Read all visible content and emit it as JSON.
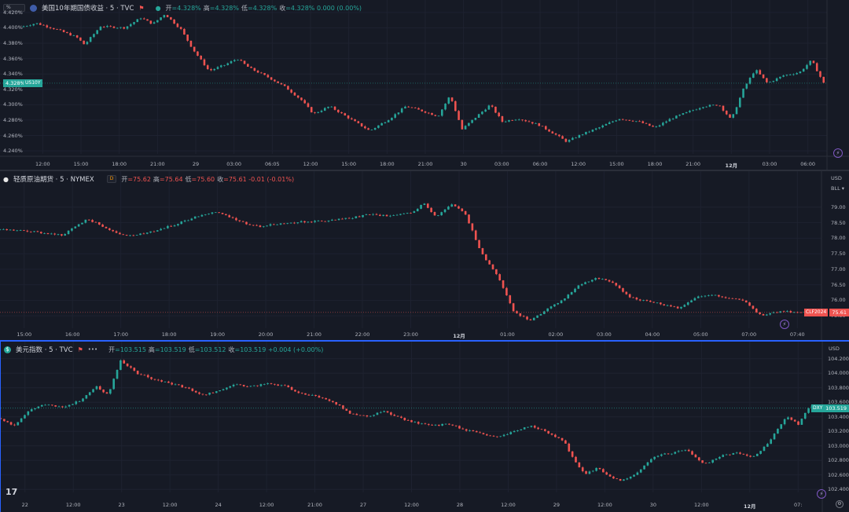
{
  "panes": [
    {
      "id": "us10y",
      "symbol_label": "美国10年期国债收益 · 5 · TVC",
      "flag_color": "#3f5ca8",
      "scale_icon": "%",
      "ohlc": [
        {
          "k": "开",
          "v": "=4.328%"
        },
        {
          "k": "高",
          "v": "=4.328%"
        },
        {
          "k": "低",
          "v": "=4.328%"
        },
        {
          "k": "收",
          "v": "=4.328% 0.000 (0.00%)"
        }
      ],
      "ohlc_color": "#26a69a",
      "price_tag": "4.328%",
      "symbol_tag": "US10Y",
      "tag_color": "#26a69a",
      "y_ticks": [
        "4.420%",
        "4.400%",
        "4.380%",
        "4.360%",
        "4.340%",
        "4.320%",
        "4.300%",
        "4.280%",
        "4.260%",
        "4.240%"
      ],
      "x_ticks": [
        "12:00",
        "15:00",
        "18:00",
        "21:00",
        "29",
        "03:00",
        "06:05",
        "12:00",
        "15:00",
        "18:00",
        "21:00",
        "30",
        "03:00",
        "06:00",
        "12:00",
        "15:00",
        "18:00",
        "21:00",
        "12月",
        "03:00",
        "06:00"
      ],
      "y_range": [
        4.236,
        4.426
      ],
      "last": 4.328,
      "path": [
        [
          0,
          4.401
        ],
        [
          0.02,
          4.406
        ],
        [
          0.045,
          4.398
        ],
        [
          0.07,
          4.388
        ],
        [
          0.08,
          4.378
        ],
        [
          0.1,
          4.402
        ],
        [
          0.13,
          4.4
        ],
        [
          0.15,
          4.413
        ],
        [
          0.165,
          4.405
        ],
        [
          0.18,
          4.418
        ],
        [
          0.2,
          4.398
        ],
        [
          0.215,
          4.372
        ],
        [
          0.235,
          4.344
        ],
        [
          0.255,
          4.352
        ],
        [
          0.27,
          4.36
        ],
        [
          0.285,
          4.348
        ],
        [
          0.31,
          4.335
        ],
        [
          0.33,
          4.323
        ],
        [
          0.35,
          4.306
        ],
        [
          0.365,
          4.288
        ],
        [
          0.385,
          4.298
        ],
        [
          0.41,
          4.282
        ],
        [
          0.435,
          4.266
        ],
        [
          0.46,
          4.282
        ],
        [
          0.48,
          4.298
        ],
        [
          0.5,
          4.292
        ],
        [
          0.52,
          4.285
        ],
        [
          0.535,
          4.312
        ],
        [
          0.55,
          4.268
        ],
        [
          0.565,
          4.282
        ],
        [
          0.585,
          4.3
        ],
        [
          0.6,
          4.278
        ],
        [
          0.62,
          4.282
        ],
        [
          0.645,
          4.274
        ],
        [
          0.665,
          4.262
        ],
        [
          0.68,
          4.252
        ],
        [
          0.7,
          4.262
        ],
        [
          0.72,
          4.27
        ],
        [
          0.745,
          4.282
        ],
        [
          0.77,
          4.278
        ],
        [
          0.79,
          4.27
        ],
        [
          0.81,
          4.282
        ],
        [
          0.83,
          4.29
        ],
        [
          0.85,
          4.298
        ],
        [
          0.87,
          4.3
        ],
        [
          0.885,
          4.28
        ],
        [
          0.9,
          4.32
        ],
        [
          0.915,
          4.346
        ],
        [
          0.93,
          4.328
        ],
        [
          0.95,
          4.338
        ],
        [
          0.97,
          4.342
        ],
        [
          0.985,
          4.358
        ],
        [
          1.0,
          4.328
        ]
      ]
    },
    {
      "id": "clf",
      "symbol_label": "轻质原油期货 · 5 · NYMEX",
      "flag_color": "#e8e8e8",
      "badge": "D",
      "ohlc": [
        {
          "k": "开",
          "v": "=75.62"
        },
        {
          "k": "高",
          "v": "=75.64"
        },
        {
          "k": "低",
          "v": "=75.60"
        },
        {
          "k": "收",
          "v": "=75.61 -0.01 (-0.01%)"
        }
      ],
      "ohlc_color": "#ef5350",
      "price_tag": "75.61",
      "symbol_tag": "CLF2024",
      "tag_color": "#ef5350",
      "currency": "USD",
      "unit": "BLL",
      "y_ticks": [
        "79.00",
        "78.50",
        "78.00",
        "77.50",
        "77.00",
        "76.50",
        "76.00",
        "75.50"
      ],
      "x_ticks": [
        "15:00",
        "16:00",
        "17:00",
        "18:00",
        "19:00",
        "20:00",
        "21:00",
        "22:00",
        "23:00",
        "12月",
        "01:00",
        "02:00",
        "03:00",
        "04:00",
        "05:00",
        "07:00",
        "07:40"
      ],
      "y_range": [
        75.1,
        79.45
      ],
      "last": 75.61,
      "path": [
        [
          0,
          78.28
        ],
        [
          0.04,
          78.22
        ],
        [
          0.08,
          78.1
        ],
        [
          0.095,
          78.35
        ],
        [
          0.11,
          78.62
        ],
        [
          0.13,
          78.38
        ],
        [
          0.155,
          78.08
        ],
        [
          0.18,
          78.14
        ],
        [
          0.2,
          78.3
        ],
        [
          0.215,
          78.42
        ],
        [
          0.23,
          78.56
        ],
        [
          0.245,
          78.72
        ],
        [
          0.265,
          78.85
        ],
        [
          0.285,
          78.68
        ],
        [
          0.3,
          78.5
        ],
        [
          0.32,
          78.38
        ],
        [
          0.34,
          78.46
        ],
        [
          0.37,
          78.52
        ],
        [
          0.4,
          78.56
        ],
        [
          0.43,
          78.64
        ],
        [
          0.455,
          78.78
        ],
        [
          0.48,
          78.7
        ],
        [
          0.505,
          78.82
        ],
        [
          0.52,
          79.12
        ],
        [
          0.535,
          78.7
        ],
        [
          0.555,
          79.1
        ],
        [
          0.57,
          78.82
        ],
        [
          0.59,
          77.52
        ],
        [
          0.61,
          76.8
        ],
        [
          0.63,
          75.6
        ],
        [
          0.65,
          75.35
        ],
        [
          0.67,
          75.72
        ],
        [
          0.69,
          76.02
        ],
        [
          0.71,
          76.5
        ],
        [
          0.73,
          76.72
        ],
        [
          0.75,
          76.58
        ],
        [
          0.77,
          76.1
        ],
        [
          0.79,
          75.98
        ],
        [
          0.81,
          75.88
        ],
        [
          0.83,
          75.74
        ],
        [
          0.85,
          76.08
        ],
        [
          0.87,
          76.2
        ],
        [
          0.89,
          76.06
        ],
        [
          0.91,
          76.0
        ],
        [
          0.93,
          75.52
        ],
        [
          0.95,
          75.62
        ],
        [
          0.98,
          75.64
        ],
        [
          1.0,
          75.61
        ]
      ]
    },
    {
      "id": "dxy",
      "symbol_label": "美元指数 · 5 · TVC",
      "flag_color": "#26a69a",
      "ohlc": [
        {
          "k": "开",
          "v": "=103.515"
        },
        {
          "k": "高",
          "v": "=103.519"
        },
        {
          "k": "低",
          "v": "=103.512"
        },
        {
          "k": "收",
          "v": "=103.519 +0.004 (+0.00%)"
        }
      ],
      "ohlc_color": "#26a69a",
      "price_tag": "103.519",
      "symbol_tag": "DXY",
      "tag_color": "#26a69a",
      "currency": "USD",
      "y_ticks": [
        "104.200",
        "104.000",
        "103.800",
        "103.600",
        "103.400",
        "103.200",
        "103.000",
        "102.800",
        "102.600",
        "102.400"
      ],
      "x_ticks": [
        "22",
        "12:00",
        "23",
        "12:00",
        "24",
        "12:00",
        "21:00",
        "27",
        "12:00",
        "28",
        "12:00",
        "29",
        "12:00",
        "30",
        "12:00",
        "12月",
        "07:"
      ],
      "y_range": [
        102.36,
        104.24
      ],
      "last": 103.519,
      "path": [
        [
          0,
          103.38
        ],
        [
          0.02,
          103.28
        ],
        [
          0.04,
          103.5
        ],
        [
          0.06,
          103.58
        ],
        [
          0.08,
          103.52
        ],
        [
          0.1,
          103.62
        ],
        [
          0.12,
          103.82
        ],
        [
          0.135,
          103.7
        ],
        [
          0.15,
          104.18
        ],
        [
          0.17,
          104.0
        ],
        [
          0.19,
          103.92
        ],
        [
          0.21,
          103.86
        ],
        [
          0.23,
          103.8
        ],
        [
          0.25,
          103.7
        ],
        [
          0.27,
          103.76
        ],
        [
          0.29,
          103.84
        ],
        [
          0.31,
          103.82
        ],
        [
          0.33,
          103.86
        ],
        [
          0.35,
          103.82
        ],
        [
          0.37,
          103.72
        ],
        [
          0.39,
          103.68
        ],
        [
          0.41,
          103.6
        ],
        [
          0.43,
          103.44
        ],
        [
          0.45,
          103.4
        ],
        [
          0.47,
          103.48
        ],
        [
          0.49,
          103.38
        ],
        [
          0.51,
          103.32
        ],
        [
          0.53,
          103.28
        ],
        [
          0.55,
          103.3
        ],
        [
          0.57,
          103.22
        ],
        [
          0.59,
          103.16
        ],
        [
          0.61,
          103.12
        ],
        [
          0.63,
          103.2
        ],
        [
          0.65,
          103.28
        ],
        [
          0.67,
          103.18
        ],
        [
          0.69,
          103.06
        ],
        [
          0.7,
          102.84
        ],
        [
          0.715,
          102.6
        ],
        [
          0.73,
          102.7
        ],
        [
          0.745,
          102.58
        ],
        [
          0.76,
          102.52
        ],
        [
          0.78,
          102.64
        ],
        [
          0.8,
          102.86
        ],
        [
          0.82,
          102.9
        ],
        [
          0.84,
          102.94
        ],
        [
          0.86,
          102.74
        ],
        [
          0.88,
          102.86
        ],
        [
          0.9,
          102.9
        ],
        [
          0.92,
          102.84
        ],
        [
          0.94,
          103.06
        ],
        [
          0.96,
          103.4
        ],
        [
          0.975,
          103.3
        ],
        [
          0.99,
          103.56
        ],
        [
          1.0,
          103.52
        ]
      ]
    }
  ],
  "logo": "17",
  "lightning_icon": "lightning-icon"
}
